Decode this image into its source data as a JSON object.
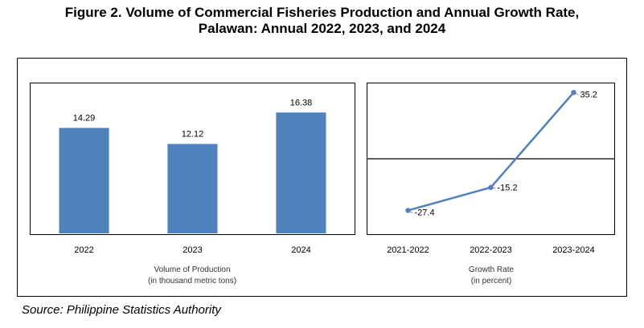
{
  "title_line1": "Figure 2. Volume of Commercial Fisheries Production and Annual Growth Rate,",
  "title_line2": "Palawan: Annual 2022, 2023, and 2024",
  "source": "Source: Philippine Statistics Authority",
  "chart_data": [
    {
      "type": "bar",
      "categories": [
        "2022",
        "2023",
        "2024"
      ],
      "values": [
        14.29,
        12.12,
        16.38
      ],
      "data_labels": [
        "14.29",
        "12.12",
        "16.38"
      ],
      "xlabel_line1": "Volume of Production",
      "xlabel_line2": "(in thousand metric tons)",
      "ylim": [
        0,
        20
      ],
      "bar_color": "#4f81bd",
      "grid": false
    },
    {
      "type": "line",
      "categories": [
        "2021-2022",
        "2022-2023",
        "2023-2024"
      ],
      "values": [
        -27.4,
        -15.2,
        35.2
      ],
      "data_labels": [
        "-27.4",
        "-15.2",
        "35.2"
      ],
      "xlabel_line1": "Growth Rate",
      "xlabel_line2": "(in percent)",
      "ylim": [
        -40,
        40
      ],
      "line_color": "#4f81bd",
      "grid": false
    }
  ]
}
